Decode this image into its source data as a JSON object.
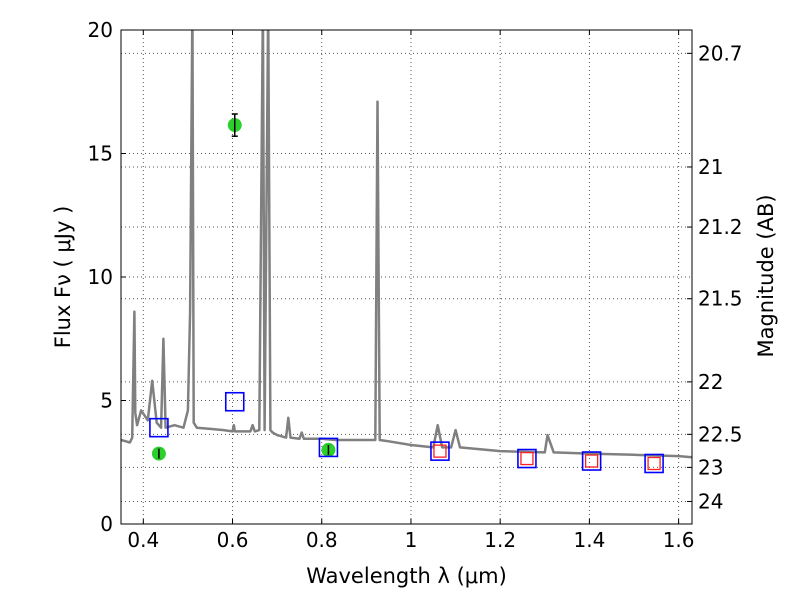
{
  "chart_data": {
    "type": "scatter",
    "title": "",
    "xlabel": "Wavelength  λ (μm)",
    "ylabel": "Flux  Fν  ( μJy )",
    "y2label": "Magnitude (AB)",
    "xlim": [
      0.35,
      1.63
    ],
    "ylim": [
      0,
      20
    ],
    "grid": true,
    "xticks": [
      {
        "v": 0.4,
        "label": "0.4"
      },
      {
        "v": 0.6,
        "label": "0.6"
      },
      {
        "v": 0.8,
        "label": "0.8"
      },
      {
        "v": 1.0,
        "label": "1"
      },
      {
        "v": 1.2,
        "label": "1.2"
      },
      {
        "v": 1.4,
        "label": "1.4"
      },
      {
        "v": 1.6,
        "label": "1.6"
      }
    ],
    "yticks": [
      {
        "v": 0,
        "label": "0"
      },
      {
        "v": 5,
        "label": "5"
      },
      {
        "v": 10,
        "label": "10"
      },
      {
        "v": 15,
        "label": "15"
      },
      {
        "v": 20,
        "label": "20"
      }
    ],
    "y2ticks": [
      {
        "v": 20.7,
        "label": "20.7"
      },
      {
        "v": 21,
        "label": "21"
      },
      {
        "v": 21.2,
        "label": "21.2"
      },
      {
        "v": 21.5,
        "label": "21.5"
      },
      {
        "v": 22,
        "label": "22"
      },
      {
        "v": 22.5,
        "label": "22.5"
      },
      {
        "v": 23,
        "label": "23"
      },
      {
        "v": 24,
        "label": "24"
      }
    ],
    "colors": {
      "spectrum": "#808080",
      "observed": "#22cc22",
      "model_blue": "#0000ff",
      "model_red": "#ff2020",
      "errorbar": "#000000",
      "grid": "#555555"
    },
    "series": [
      {
        "role": "model_spectrum",
        "style": "line",
        "x": [
          0.35,
          0.37,
          0.375,
          0.38,
          0.382,
          0.386,
          0.395,
          0.41,
          0.42,
          0.43,
          0.44,
          0.445,
          0.45,
          0.47,
          0.49,
          0.5,
          0.505,
          0.51,
          0.513,
          0.52,
          0.55,
          0.58,
          0.6,
          0.603,
          0.605,
          0.62,
          0.64,
          0.645,
          0.65,
          0.66,
          0.668,
          0.672,
          0.68,
          0.685,
          0.69,
          0.7,
          0.72,
          0.725,
          0.73,
          0.75,
          0.755,
          0.76,
          0.78,
          0.8,
          0.83,
          0.86,
          0.88,
          0.9,
          0.92,
          0.925,
          0.93,
          0.95,
          1.0,
          1.05,
          1.06,
          1.07,
          1.09,
          1.1,
          1.11,
          1.2,
          1.3,
          1.306,
          1.32,
          1.4,
          1.5,
          1.6,
          1.63
        ],
        "y": [
          3.4,
          3.3,
          3.5,
          8.6,
          4.5,
          4.0,
          4.6,
          4.2,
          5.8,
          4.1,
          3.9,
          7.5,
          3.9,
          4.0,
          3.9,
          4.6,
          8.6,
          21.0,
          4.1,
          3.9,
          3.85,
          3.8,
          3.75,
          4.0,
          3.75,
          3.75,
          3.75,
          4.0,
          3.75,
          3.8,
          21.0,
          3.8,
          21.0,
          3.8,
          3.7,
          3.6,
          3.5,
          4.3,
          3.5,
          3.45,
          3.7,
          3.45,
          3.45,
          3.45,
          3.4,
          3.4,
          3.4,
          3.4,
          3.4,
          17.1,
          3.4,
          3.35,
          3.2,
          3.1,
          4.0,
          3.1,
          3.1,
          3.8,
          3.1,
          2.95,
          2.9,
          3.6,
          2.9,
          2.85,
          2.8,
          2.75,
          2.7
        ]
      },
      {
        "role": "observed_photometry",
        "style": "circle",
        "x": [
          0.435,
          0.605,
          0.815
        ],
        "y": [
          2.85,
          16.15,
          3.0
        ],
        "yerr": [
          0.2,
          0.45,
          0.2
        ]
      },
      {
        "role": "model_photometry",
        "style": "square",
        "x": [
          0.435,
          0.605,
          0.815,
          1.065,
          1.26,
          1.405,
          1.545
        ],
        "y": [
          3.9,
          4.95,
          3.1,
          2.95,
          2.65,
          2.55,
          2.45
        ],
        "red_inner": [
          false,
          false,
          false,
          true,
          true,
          true,
          true
        ]
      }
    ]
  }
}
